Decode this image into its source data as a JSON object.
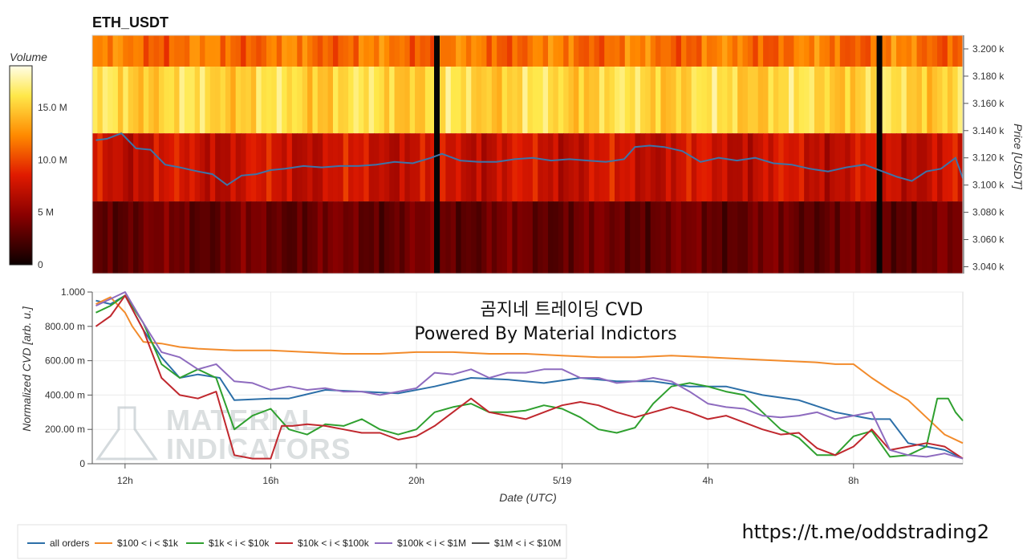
{
  "chart_data": [
    {
      "type": "heatmap",
      "title": "ETH_USDT",
      "ylabel": "Price [USDT]",
      "ylim": [
        3035,
        3210
      ],
      "y_ticks": [
        3040,
        3060,
        3080,
        3100,
        3120,
        3140,
        3160,
        3180,
        3200
      ],
      "y_tick_labels": [
        "3.040 k",
        "3.060 k",
        "3.080 k",
        "3.100 k",
        "3.120 k",
        "3.140 k",
        "3.160 k",
        "3.180 k",
        "3.200 k"
      ],
      "x_range_hours": [
        11.1,
        35.0
      ],
      "price_bands": [
        {
          "low": 3187,
          "high": 3210,
          "base_volume": 11.5
        },
        {
          "low": 3138,
          "high": 3187,
          "base_volume": 15.5
        },
        {
          "low": 3088,
          "high": 3138,
          "base_volume": 7.5
        },
        {
          "low": 3035,
          "high": 3088,
          "base_volume": 3.5
        }
      ],
      "colorbar": {
        "label": "Volume",
        "range": [
          0,
          19
        ],
        "ticks": [
          0,
          5,
          10,
          15
        ],
        "tick_labels": [
          "0",
          "5 M",
          "10.0 M",
          "15.0 M"
        ]
      },
      "gap_hours": [
        20.55,
        32.7
      ],
      "price_line": {
        "x_hours": [
          11.2,
          11.5,
          11.9,
          12.3,
          12.7,
          13.1,
          13.5,
          14.0,
          14.4,
          14.8,
          15.2,
          15.6,
          16.0,
          16.4,
          16.9,
          17.4,
          17.9,
          18.4,
          18.9,
          19.4,
          19.9,
          20.4,
          20.7,
          21.2,
          21.7,
          22.2,
          22.7,
          23.2,
          23.7,
          24.2,
          24.7,
          25.2,
          25.7,
          26.0,
          26.4,
          26.8,
          27.3,
          27.8,
          28.3,
          28.8,
          29.3,
          29.8,
          30.3,
          30.8,
          31.3,
          31.8,
          32.3,
          32.8,
          33.2,
          33.6,
          34.0,
          34.4,
          34.8,
          35.0
        ],
        "values": [
          3133,
          3134,
          3138,
          3127,
          3126,
          3115,
          3113,
          3110,
          3108,
          3100,
          3107,
          3108,
          3111,
          3112,
          3114,
          3113,
          3114,
          3114,
          3115,
          3117,
          3116,
          3120,
          3123,
          3118,
          3117,
          3117,
          3119,
          3120,
          3118,
          3119,
          3118,
          3117,
          3119,
          3128,
          3129,
          3128,
          3125,
          3117,
          3120,
          3118,
          3120,
          3116,
          3115,
          3112,
          3110,
          3113,
          3115,
          3110,
          3106,
          3103,
          3110,
          3112,
          3120,
          3105
        ]
      }
    },
    {
      "type": "line",
      "title": "",
      "xlabel": "Date (UTC)",
      "ylabel": "Normalized CVD [arb. u.]",
      "ylim": [
        0,
        1
      ],
      "xlim_hours": [
        11.1,
        35.0
      ],
      "x_ticks_hours": [
        12,
        16,
        20,
        24,
        28,
        32
      ],
      "x_tick_labels": [
        "12h",
        "16h",
        "20h",
        "5/19",
        "4h",
        "8h"
      ],
      "y_ticks": [
        0,
        0.2,
        0.4,
        0.6,
        0.8,
        1.0
      ],
      "y_tick_labels": [
        "0",
        "200.00 m",
        "400.00 m",
        "600.00 m",
        "800.00 m",
        "1.000"
      ],
      "series": [
        {
          "name": "all orders",
          "color": "#2c6fa8",
          "x": [
            11.2,
            11.6,
            12.0,
            12.5,
            13.0,
            13.5,
            14.0,
            14.6,
            15.0,
            16.0,
            16.5,
            17.5,
            18.5,
            19.5,
            20.5,
            21.5,
            22.5,
            23.5,
            24.5,
            25.5,
            26.5,
            27.5,
            28.5,
            29.5,
            30.5,
            31.5,
            32.5,
            33.0,
            33.5,
            34.0,
            34.5,
            35.0
          ],
          "values": [
            0.95,
            0.93,
            0.98,
            0.78,
            0.62,
            0.5,
            0.52,
            0.5,
            0.37,
            0.38,
            0.38,
            0.43,
            0.42,
            0.41,
            0.45,
            0.5,
            0.49,
            0.47,
            0.5,
            0.48,
            0.48,
            0.45,
            0.45,
            0.4,
            0.37,
            0.3,
            0.26,
            0.26,
            0.12,
            0.1,
            0.08,
            0.03
          ]
        },
        {
          "name": "$100 < i < $1k",
          "color": "#f28b2b",
          "x": [
            11.2,
            11.6,
            12.0,
            12.2,
            12.5,
            13.0,
            13.5,
            14.0,
            15.0,
            16.0,
            17.0,
            18.0,
            19.0,
            20.0,
            21.0,
            22.0,
            23.0,
            24.0,
            25.0,
            26.0,
            27.0,
            28.0,
            29.0,
            30.0,
            31.0,
            31.5,
            32.0,
            32.5,
            33.0,
            33.5,
            34.0,
            34.5,
            35.0
          ],
          "values": [
            0.93,
            0.97,
            0.88,
            0.8,
            0.71,
            0.7,
            0.68,
            0.67,
            0.66,
            0.66,
            0.65,
            0.64,
            0.64,
            0.65,
            0.65,
            0.64,
            0.64,
            0.63,
            0.62,
            0.62,
            0.63,
            0.62,
            0.61,
            0.6,
            0.59,
            0.58,
            0.58,
            0.5,
            0.43,
            0.37,
            0.27,
            0.17,
            0.12
          ]
        },
        {
          "name": "$1k < i < $10k",
          "color": "#2fa02f",
          "x": [
            11.2,
            11.6,
            12.0,
            12.5,
            13.0,
            13.5,
            14.0,
            14.5,
            15.0,
            15.5,
            16.0,
            16.5,
            17.0,
            17.5,
            18.0,
            18.5,
            19.0,
            19.5,
            20.0,
            20.5,
            21.0,
            21.5,
            22.0,
            22.5,
            23.0,
            23.5,
            24.0,
            24.5,
            25.0,
            25.5,
            26.0,
            26.5,
            27.0,
            27.5,
            28.0,
            28.5,
            29.0,
            29.5,
            30.0,
            30.5,
            31.0,
            31.5,
            32.0,
            32.5,
            33.0,
            33.5,
            34.0,
            34.3,
            34.6,
            34.8,
            35.0
          ],
          "values": [
            0.88,
            0.92,
            0.98,
            0.82,
            0.58,
            0.5,
            0.55,
            0.5,
            0.2,
            0.28,
            0.32,
            0.2,
            0.17,
            0.23,
            0.22,
            0.26,
            0.2,
            0.17,
            0.2,
            0.3,
            0.33,
            0.35,
            0.3,
            0.3,
            0.31,
            0.34,
            0.32,
            0.27,
            0.2,
            0.18,
            0.21,
            0.35,
            0.45,
            0.47,
            0.45,
            0.42,
            0.4,
            0.3,
            0.2,
            0.15,
            0.05,
            0.05,
            0.16,
            0.19,
            0.04,
            0.05,
            0.1,
            0.38,
            0.38,
            0.3,
            0.25
          ]
        },
        {
          "name": "$10k < i < $100k",
          "color": "#c0282e",
          "x": [
            11.2,
            11.6,
            12.0,
            12.5,
            13.0,
            13.5,
            14.0,
            14.5,
            15.0,
            15.5,
            16.0,
            16.3,
            16.6,
            17.0,
            17.5,
            18.0,
            18.5,
            19.0,
            19.5,
            20.0,
            20.5,
            21.0,
            21.5,
            22.0,
            22.5,
            23.0,
            23.5,
            24.0,
            24.5,
            25.0,
            25.5,
            26.0,
            26.5,
            27.0,
            27.5,
            28.0,
            28.5,
            29.0,
            29.5,
            30.0,
            30.5,
            31.0,
            31.5,
            32.0,
            32.5,
            33.0,
            33.5,
            34.0,
            34.5,
            35.0
          ],
          "values": [
            0.8,
            0.86,
            0.98,
            0.78,
            0.5,
            0.4,
            0.38,
            0.42,
            0.05,
            0.03,
            0.03,
            0.22,
            0.22,
            0.23,
            0.22,
            0.2,
            0.18,
            0.18,
            0.14,
            0.16,
            0.22,
            0.3,
            0.38,
            0.3,
            0.28,
            0.26,
            0.3,
            0.34,
            0.36,
            0.34,
            0.3,
            0.27,
            0.3,
            0.33,
            0.3,
            0.26,
            0.28,
            0.24,
            0.2,
            0.17,
            0.18,
            0.09,
            0.05,
            0.1,
            0.2,
            0.08,
            0.1,
            0.12,
            0.1,
            0.03
          ]
        },
        {
          "name": "$100k < i < $1M",
          "color": "#8e6bbf",
          "x": [
            11.2,
            11.6,
            12.0,
            12.5,
            13.0,
            13.5,
            14.0,
            14.5,
            15.0,
            15.5,
            16.0,
            16.5,
            17.0,
            17.5,
            18.0,
            18.5,
            19.0,
            19.5,
            20.0,
            20.5,
            21.0,
            21.5,
            22.0,
            22.5,
            23.0,
            23.5,
            24.0,
            24.5,
            25.0,
            25.5,
            26.0,
            26.5,
            27.0,
            27.5,
            28.0,
            28.5,
            29.0,
            29.5,
            30.0,
            30.5,
            31.0,
            31.5,
            32.0,
            32.5,
            33.0,
            33.5,
            34.0,
            34.5,
            35.0
          ],
          "values": [
            0.92,
            0.96,
            1.0,
            0.82,
            0.65,
            0.62,
            0.55,
            0.58,
            0.48,
            0.47,
            0.43,
            0.45,
            0.43,
            0.44,
            0.42,
            0.42,
            0.4,
            0.42,
            0.44,
            0.53,
            0.52,
            0.55,
            0.5,
            0.53,
            0.53,
            0.55,
            0.55,
            0.5,
            0.5,
            0.47,
            0.48,
            0.5,
            0.48,
            0.42,
            0.35,
            0.33,
            0.32,
            0.28,
            0.27,
            0.28,
            0.3,
            0.26,
            0.28,
            0.3,
            0.08,
            0.05,
            0.04,
            0.06,
            0.03
          ]
        },
        {
          "name": "$1M < i < $10M",
          "color": "#555555",
          "x": [],
          "values": []
        }
      ],
      "overlay_text": [
        "곰지네 트레이딩 CVD",
        "Powered By Material Indictors"
      ],
      "watermark": [
        "MATERIAL",
        "INDICATORS"
      ]
    }
  ],
  "footer": {
    "url": "https://t.me/oddstrading2"
  }
}
